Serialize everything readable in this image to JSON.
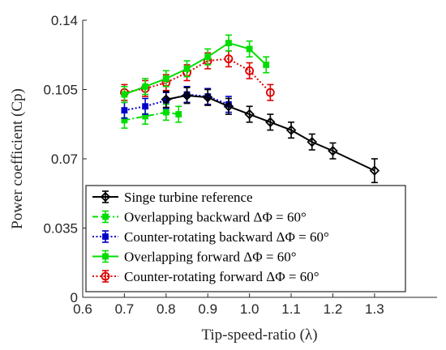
{
  "chart_data": {
    "type": "line",
    "xlabel": "Tip-speed-ratio (λ)",
    "ylabel": "Power coefficient (Cp)",
    "xlim": [
      0.6,
      1.45
    ],
    "ylim": [
      0,
      0.14
    ],
    "x_ticks": [
      0.6,
      0.7,
      0.8,
      0.9,
      1.0,
      1.1,
      1.2,
      1.3
    ],
    "x_tick_labels": [
      "0.6",
      "0.7",
      "0.8",
      "0.9",
      "1.0",
      "1.1",
      "1.2",
      "1.3"
    ],
    "y_ticks": [
      0,
      0.035,
      0.07,
      0.105,
      0.14
    ],
    "y_tick_labels": [
      "0",
      "0.035",
      "0.07",
      "0.105",
      "0.14"
    ],
    "grid": false,
    "legend_position": "bottom-left",
    "series": [
      {
        "name": "Singe turbine reference",
        "color": "#000000",
        "line_style": "solid",
        "marker": "diamond",
        "x": [
          0.8,
          0.85,
          0.9,
          0.95,
          1.0,
          1.05,
          1.1,
          1.15,
          1.2,
          1.3
        ],
        "y": [
          0.1,
          0.102,
          0.101,
          0.0965,
          0.0925,
          0.0885,
          0.0845,
          0.0785,
          0.074,
          0.064
        ],
        "err": [
          0.004,
          0.004,
          0.004,
          0.004,
          0.004,
          0.004,
          0.004,
          0.004,
          0.004,
          0.006
        ]
      },
      {
        "name": "Overlapping backward ΔΦ = 60°",
        "color": "#00dd00",
        "line_style": "dashdot",
        "marker": "square",
        "x": [
          0.7,
          0.75,
          0.8,
          0.83
        ],
        "y": [
          0.0895,
          0.0915,
          0.0935,
          0.0925
        ],
        "err": [
          0.004,
          0.004,
          0.004,
          0.004
        ]
      },
      {
        "name": "Counter-rotating backward ΔΦ = 60°",
        "color": "#0000cc",
        "line_style": "dotted",
        "marker": "square",
        "x": [
          0.7,
          0.75,
          0.8,
          0.85,
          0.9,
          0.95
        ],
        "y": [
          0.0945,
          0.0965,
          0.0995,
          0.1025,
          0.1015,
          0.0975
        ],
        "err": [
          0.004,
          0.004,
          0.004,
          0.004,
          0.004,
          0.004
        ]
      },
      {
        "name": "Overlapping forward ΔΦ = 60°",
        "color": "#00dd00",
        "line_style": "solid",
        "marker": "square",
        "x": [
          0.7,
          0.75,
          0.8,
          0.85,
          0.9,
          0.95,
          1.0,
          1.04
        ],
        "y": [
          0.1025,
          0.1065,
          0.1105,
          0.1155,
          0.1215,
          0.1285,
          0.1255,
          0.1175
        ],
        "err": [
          0.004,
          0.004,
          0.004,
          0.004,
          0.004,
          0.004,
          0.004,
          0.004
        ]
      },
      {
        "name": "Counter-rotating forward ΔΦ = 60°",
        "color": "#dd0000",
        "line_style": "dotted",
        "marker": "circle",
        "x": [
          0.7,
          0.75,
          0.8,
          0.85,
          0.9,
          0.95,
          1.0,
          1.05
        ],
        "y": [
          0.1035,
          0.1055,
          0.1085,
          0.1135,
          0.1195,
          0.1205,
          0.1145,
          0.1035
        ],
        "err": [
          0.004,
          0.004,
          0.004,
          0.004,
          0.004,
          0.004,
          0.004,
          0.004
        ]
      }
    ]
  }
}
